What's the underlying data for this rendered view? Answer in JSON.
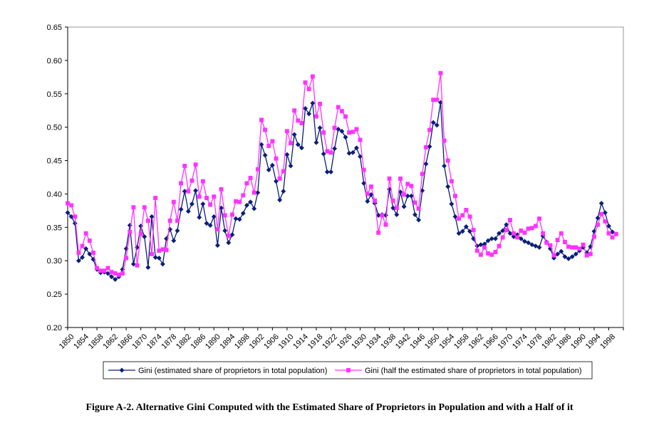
{
  "caption": "Figure A-2. Alternative Gini Computed with the Estimated Share of Proprietors in Population and with a Half of it",
  "chart_data": {
    "type": "line",
    "title": "",
    "xlabel": "",
    "ylabel": "",
    "x_start": 1850,
    "x_end": 2002,
    "x_tick_labels": [
      "1850",
      "1854",
      "1858",
      "1862",
      "1866",
      "1870",
      "1874",
      "1878",
      "1882",
      "1886",
      "1890",
      "1894",
      "1898",
      "1902",
      "1906",
      "1910",
      "1914",
      "1918",
      "1922",
      "1926",
      "1930",
      "1934",
      "1938",
      "1942",
      "1946",
      "1950",
      "1954",
      "1958",
      "1962",
      "1966",
      "1970",
      "1974",
      "1978",
      "1982",
      "1986",
      "1990",
      "1994",
      "1998"
    ],
    "y_tick_labels": [
      "0.20",
      "0.25",
      "0.30",
      "0.35",
      "0.40",
      "0.45",
      "0.50",
      "0.55",
      "0.60",
      "0.65"
    ],
    "ylim": [
      0.2,
      0.65
    ],
    "grid": false,
    "legend_position": "bottom",
    "series": [
      {
        "name": "Gini (estimated share of proprietors in total population)",
        "color": "#0a1e78",
        "marker": "diamond",
        "start_year": 1850,
        "values": [
          0.372,
          0.366,
          0.356,
          0.3,
          0.305,
          0.318,
          0.31,
          0.302,
          0.287,
          0.282,
          0.283,
          0.281,
          0.276,
          0.272,
          0.276,
          0.287,
          0.318,
          0.353,
          0.295,
          0.32,
          0.352,
          0.336,
          0.29,
          0.366,
          0.305,
          0.304,
          0.295,
          0.333,
          0.347,
          0.33,
          0.345,
          0.377,
          0.404,
          0.374,
          0.385,
          0.405,
          0.365,
          0.385,
          0.356,
          0.353,
          0.366,
          0.323,
          0.379,
          0.345,
          0.327,
          0.339,
          0.363,
          0.362,
          0.371,
          0.383,
          0.388,
          0.378,
          0.402,
          0.474,
          0.458,
          0.436,
          0.443,
          0.419,
          0.391,
          0.404,
          0.459,
          0.442,
          0.489,
          0.474,
          0.469,
          0.528,
          0.52,
          0.536,
          0.477,
          0.499,
          0.46,
          0.433,
          0.433,
          0.468,
          0.497,
          0.494,
          0.485,
          0.461,
          0.462,
          0.469,
          0.456,
          0.416,
          0.389,
          0.399,
          0.386,
          0.368,
          0.369,
          0.368,
          0.407,
          0.379,
          0.369,
          0.403,
          0.381,
          0.397,
          0.397,
          0.369,
          0.361,
          0.405,
          0.445,
          0.471,
          0.507,
          0.503,
          0.537,
          0.442,
          0.411,
          0.385,
          0.366,
          0.341,
          0.344,
          0.351,
          0.344,
          0.333,
          0.322,
          0.324,
          0.325,
          0.33,
          0.333,
          0.333,
          0.341,
          0.345,
          0.354,
          0.341,
          0.336,
          0.339,
          0.333,
          0.329,
          0.327,
          0.324,
          0.322,
          0.32,
          0.337,
          0.328,
          0.318,
          0.304,
          0.31,
          0.314,
          0.306,
          0.303,
          0.306,
          0.31,
          0.315,
          0.32,
          0.312,
          0.321,
          0.344,
          0.364,
          0.386,
          0.372,
          0.352,
          0.343,
          0.34
        ]
      },
      {
        "name": "Gini (half the estimated share of proprietors in total population)",
        "color": "#ff33ff",
        "marker": "square",
        "start_year": 1850,
        "values": [
          0.386,
          0.383,
          0.366,
          0.312,
          0.322,
          0.341,
          0.33,
          0.312,
          0.289,
          0.285,
          0.285,
          0.289,
          0.283,
          0.281,
          0.279,
          0.281,
          0.304,
          0.343,
          0.38,
          0.293,
          0.34,
          0.38,
          0.36,
          0.31,
          0.394,
          0.315,
          0.317,
          0.316,
          0.36,
          0.388,
          0.36,
          0.416,
          0.442,
          0.404,
          0.42,
          0.444,
          0.396,
          0.419,
          0.394,
          0.384,
          0.396,
          0.347,
          0.407,
          0.368,
          0.337,
          0.369,
          0.389,
          0.388,
          0.398,
          0.416,
          0.424,
          0.402,
          0.437,
          0.511,
          0.496,
          0.472,
          0.479,
          0.453,
          0.423,
          0.434,
          0.494,
          0.476,
          0.525,
          0.51,
          0.506,
          0.567,
          0.557,
          0.576,
          0.516,
          0.535,
          0.492,
          0.464,
          0.462,
          0.499,
          0.53,
          0.524,
          0.516,
          0.492,
          0.493,
          0.497,
          0.481,
          0.436,
          0.4,
          0.411,
          0.39,
          0.342,
          0.368,
          0.354,
          0.423,
          0.39,
          0.379,
          0.423,
          0.399,
          0.415,
          0.412,
          0.387,
          0.378,
          0.43,
          0.47,
          0.496,
          0.541,
          0.541,
          0.581,
          0.48,
          0.45,
          0.419,
          0.397,
          0.363,
          0.368,
          0.376,
          0.366,
          0.346,
          0.315,
          0.309,
          0.32,
          0.311,
          0.309,
          0.313,
          0.322,
          0.335,
          0.346,
          0.361,
          0.341,
          0.335,
          0.345,
          0.342,
          0.348,
          0.349,
          0.352,
          0.363,
          0.341,
          0.327,
          0.323,
          0.308,
          0.331,
          0.341,
          0.328,
          0.321,
          0.32,
          0.32,
          0.318,
          0.324,
          0.308,
          0.31,
          0.336,
          0.354,
          0.37,
          0.359,
          0.341,
          0.335,
          0.34
        ]
      }
    ]
  }
}
